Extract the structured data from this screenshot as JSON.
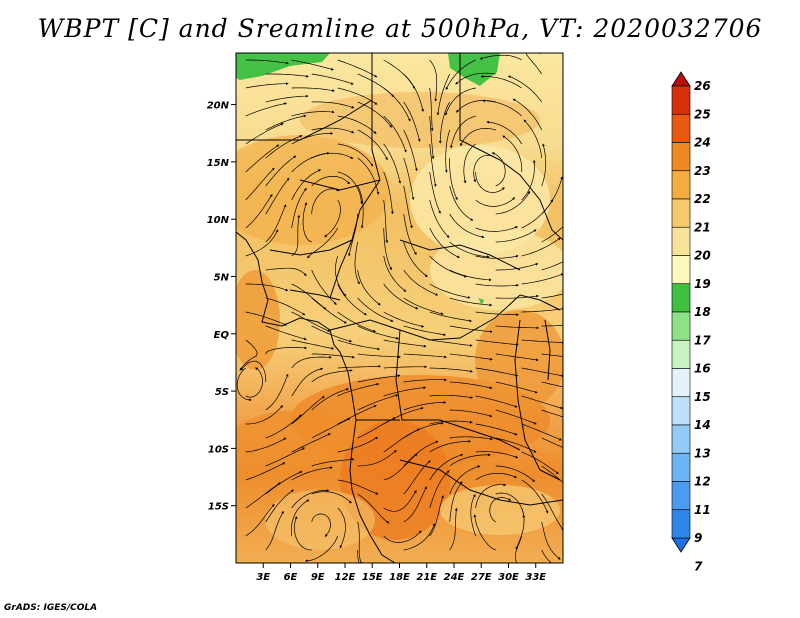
{
  "title": "WBPT [C] and Sreamline at 500hPa, VT: 2020032706",
  "footer": "GrADS: IGES/COLA",
  "map": {
    "lon_range": [
      0,
      36
    ],
    "lat_range": [
      -20,
      24.5
    ],
    "lat_ticks": [
      {
        "value": 20,
        "label": "20N"
      },
      {
        "value": 15,
        "label": "15N"
      },
      {
        "value": 10,
        "label": "10N"
      },
      {
        "value": 5,
        "label": "5N"
      },
      {
        "value": 0,
        "label": "EQ"
      },
      {
        "value": -5,
        "label": "5S"
      },
      {
        "value": -10,
        "label": "10S"
      },
      {
        "value": -15,
        "label": "15S"
      }
    ],
    "lon_ticks": [
      {
        "value": 3,
        "label": "3E"
      },
      {
        "value": 6,
        "label": "6E"
      },
      {
        "value": 9,
        "label": "9E"
      },
      {
        "value": 12,
        "label": "12E"
      },
      {
        "value": 15,
        "label": "15E"
      },
      {
        "value": 18,
        "label": "18E"
      },
      {
        "value": 21,
        "label": "21E"
      },
      {
        "value": 24,
        "label": "24E"
      },
      {
        "value": 27,
        "label": "27E"
      },
      {
        "value": 30,
        "label": "30E"
      },
      {
        "value": 33,
        "label": "33E"
      }
    ]
  },
  "colorbar": {
    "levels": [
      "7",
      "9",
      "11",
      "12",
      "13",
      "14",
      "15",
      "16",
      "17",
      "18",
      "19",
      "20",
      "21",
      "22",
      "23",
      "24",
      "25",
      "26"
    ],
    "colors": [
      "#1e6fe0",
      "#2f86ea",
      "#4a9cf0",
      "#6cb4f4",
      "#93cbf7",
      "#bcdffa",
      "#e4f3fb",
      "#c9f2c1",
      "#8de288",
      "#3fc13f",
      "#fdf7bf",
      "#f9e29a",
      "#f6c96a",
      "#f3ac3e",
      "#ef8a22",
      "#e85a12",
      "#d8300b",
      "#b80d0d"
    ]
  }
}
